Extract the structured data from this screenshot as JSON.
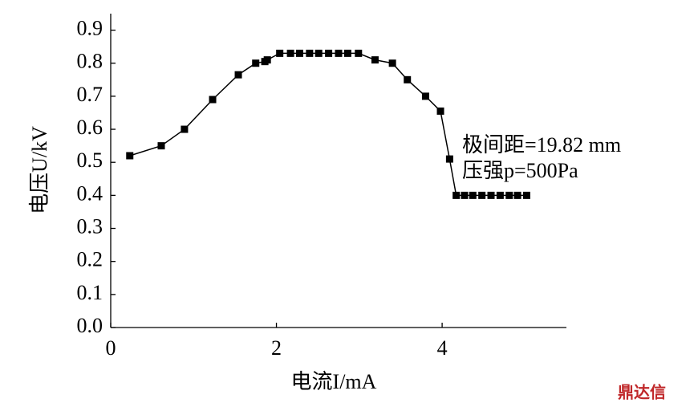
{
  "chart_data": {
    "type": "line",
    "xlabel": "电流I/mA",
    "ylabel": "电压U/kV",
    "annotations": [
      "极间距=19.82 mm",
      "压强p=500Pa"
    ],
    "watermark": "鼎达信",
    "xlim": [
      0,
      5.5
    ],
    "ylim": [
      0,
      0.95
    ],
    "xticks": [
      0,
      2,
      4
    ],
    "yticks": [
      {
        "value": 0,
        "label": "0.0"
      },
      0.1,
      0.2,
      0.3,
      0.4,
      0.5,
      0.6,
      0.7,
      0.8,
      0.9
    ],
    "series": [
      {
        "color": "#000000",
        "x": [
          0.23,
          0.61,
          0.89,
          1.23,
          1.54,
          1.75,
          1.86,
          1.89,
          2.04,
          2.17,
          2.28,
          2.4,
          2.51,
          2.63,
          2.75,
          2.86,
          2.99,
          3.19,
          3.4,
          3.58,
          3.8,
          3.98,
          4.09,
          4.17,
          4.27,
          4.37,
          4.48,
          4.59,
          4.7,
          4.81,
          4.91,
          5.02
        ],
        "values": [
          0.52,
          0.55,
          0.6,
          0.69,
          0.765,
          0.8,
          0.805,
          0.81,
          0.83,
          0.83,
          0.83,
          0.83,
          0.83,
          0.83,
          0.83,
          0.83,
          0.83,
          0.81,
          0.8,
          0.75,
          0.7,
          0.655,
          0.51,
          0.4,
          0.4,
          0.4,
          0.4,
          0.4,
          0.4,
          0.4,
          0.4,
          0.4
        ]
      }
    ]
  }
}
